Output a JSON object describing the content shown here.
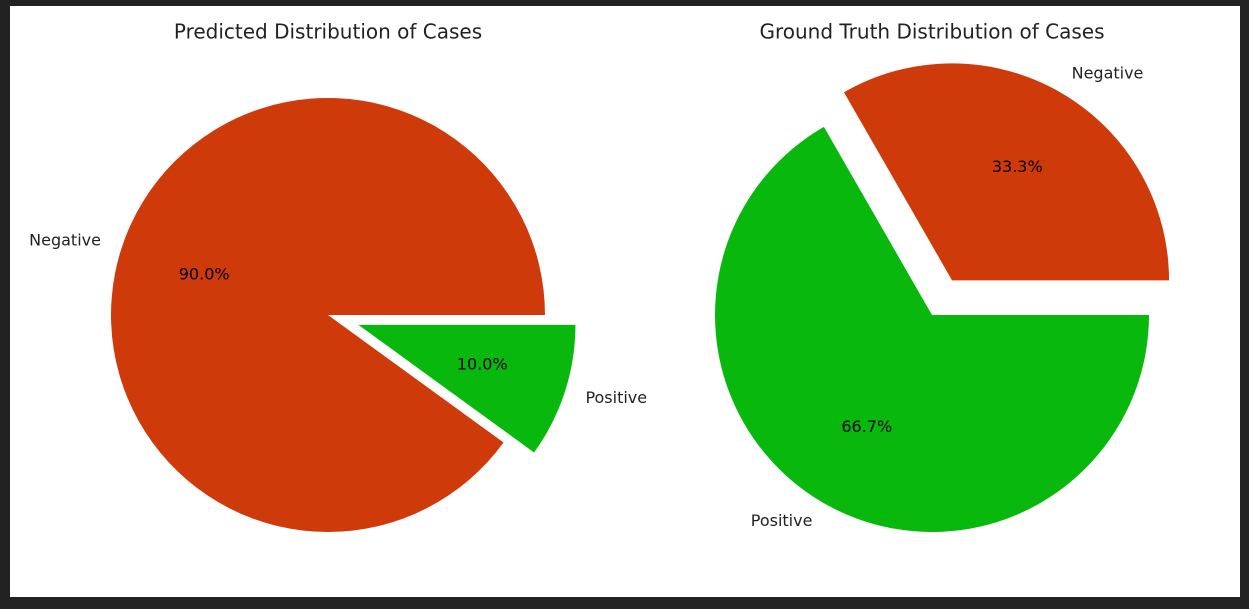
{
  "chart_data": [
    {
      "type": "pie",
      "title": "Predicted Distribution of Cases",
      "categories": [
        "Negative",
        "Positive"
      ],
      "values": [
        90.0,
        10.0
      ],
      "percent_labels": [
        "90.0%",
        "10.0%"
      ],
      "colors": [
        "#cf3a0a",
        "#08b80c"
      ],
      "exploded": [
        "Positive"
      ]
    },
    {
      "type": "pie",
      "title": "Ground Truth Distribution of Cases",
      "categories": [
        "Negative",
        "Positive"
      ],
      "values": [
        33.3,
        66.7
      ],
      "percent_labels": [
        "33.3%",
        "66.7%"
      ],
      "colors": [
        "#cf3a0a",
        "#08b80c"
      ],
      "exploded": [
        "Negative"
      ]
    }
  ]
}
